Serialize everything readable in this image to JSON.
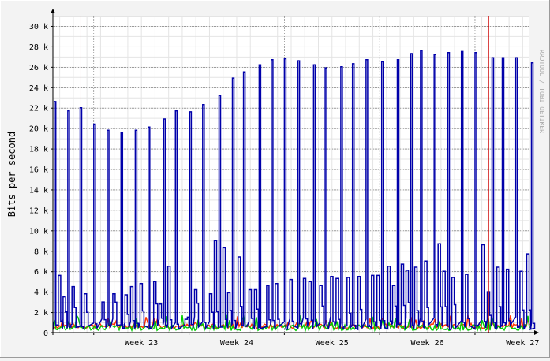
{
  "chart_data": {
    "type": "line",
    "ylabel": "Bits per second",
    "watermark": "RRDTOOL / TOBI OETIKER",
    "ylim": [
      0,
      31000
    ],
    "y_ticks": [
      {
        "value": 0,
        "label": "0"
      },
      {
        "value": 2000,
        "label": "2 k"
      },
      {
        "value": 4000,
        "label": "4 k"
      },
      {
        "value": 6000,
        "label": "6 k"
      },
      {
        "value": 8000,
        "label": "8 k"
      },
      {
        "value": 10000,
        "label": "10 k"
      },
      {
        "value": 12000,
        "label": "12 k"
      },
      {
        "value": 14000,
        "label": "14 k"
      },
      {
        "value": 16000,
        "label": "16 k"
      },
      {
        "value": 18000,
        "label": "18 k"
      },
      {
        "value": 20000,
        "label": "20 k"
      },
      {
        "value": 22000,
        "label": "22 k"
      },
      {
        "value": 24000,
        "label": "24 k"
      },
      {
        "value": 26000,
        "label": "26 k"
      },
      {
        "value": 28000,
        "label": "28 k"
      },
      {
        "value": 30000,
        "label": "30 k"
      }
    ],
    "x_range_days": [
      0,
      35
    ],
    "week_boundaries": [
      3,
      10,
      17,
      24,
      31
    ],
    "x_ticks": [
      {
        "value": 6.5,
        "label": "Week 23"
      },
      {
        "value": 13.5,
        "label": "Week 24"
      },
      {
        "value": 20.5,
        "label": "Week 25"
      },
      {
        "value": 27.5,
        "label": "Week 26"
      },
      {
        "value": 34.5,
        "label": "Week 27"
      }
    ],
    "markers": [
      2,
      32
    ],
    "colors": {
      "background": "#f3f3f3",
      "plot_bg": "#ffffff",
      "minor_grid": "#e4e4e4",
      "major_grid": "#6e6e6e",
      "axis": "#000000",
      "marker": "#cc0000",
      "watermark": "#aaaaaa",
      "border_light": "#ffffff",
      "border_dark": "#9b9b9b"
    },
    "series": [
      {
        "color": "#0000aa",
        "peaks": [
          [
            0.1,
            22600
          ],
          [
            1,
            21700
          ],
          [
            2,
            22000
          ],
          [
            3,
            20400
          ],
          [
            4,
            19800
          ],
          [
            5,
            19600
          ],
          [
            6,
            19800
          ],
          [
            7,
            20100
          ],
          [
            8,
            20900
          ],
          [
            9,
            21700
          ],
          [
            10,
            21600
          ],
          [
            11,
            22300
          ],
          [
            12,
            23200
          ],
          [
            13,
            24900
          ],
          [
            14,
            25500
          ],
          [
            15,
            26200
          ],
          [
            16,
            26700
          ],
          [
            17,
            26800
          ],
          [
            18,
            26600
          ],
          [
            19,
            26200
          ],
          [
            20,
            25900
          ],
          [
            21,
            26000
          ],
          [
            22,
            26300
          ],
          [
            23,
            26700
          ],
          [
            24,
            26500
          ],
          [
            25,
            26700
          ],
          [
            26,
            27300
          ],
          [
            27,
            27600
          ],
          [
            28,
            27200
          ],
          [
            29,
            27400
          ],
          [
            30,
            27500
          ],
          [
            31,
            27400
          ],
          [
            32,
            26900
          ],
          [
            33,
            26900
          ],
          [
            34,
            26900
          ],
          [
            35,
            26400
          ]
        ],
        "bursts": [
          [
            0.4,
            5600
          ],
          [
            0.7,
            3500
          ],
          [
            1.4,
            4500
          ],
          [
            2.3,
            3800
          ],
          [
            3.6,
            3000
          ],
          [
            4.4,
            3800
          ],
          [
            5.2,
            3700
          ],
          [
            5.7,
            4500
          ],
          [
            6.4,
            4800
          ],
          [
            7.4,
            5000
          ],
          [
            7.8,
            2800
          ],
          [
            8.4,
            6500
          ],
          [
            9.7,
            1300
          ],
          [
            10.4,
            4200
          ],
          [
            11.5,
            3800
          ],
          [
            11.8,
            9000
          ],
          [
            12.1,
            8300
          ],
          [
            12.7,
            3900
          ],
          [
            13.6,
            7400
          ],
          [
            14.4,
            4200
          ],
          [
            14.8,
            4200
          ],
          [
            15.7,
            4600
          ],
          [
            16.3,
            4800
          ],
          [
            17.4,
            5200
          ],
          [
            18.4,
            5300
          ],
          [
            18.8,
            5000
          ],
          [
            19.6,
            4600
          ],
          [
            20.4,
            5500
          ],
          [
            20.8,
            5300
          ],
          [
            21.6,
            5400
          ],
          [
            22.4,
            5500
          ],
          [
            23.4,
            5600
          ],
          [
            23.8,
            5600
          ],
          [
            24.6,
            6500
          ],
          [
            24.9,
            4600
          ],
          [
            25.5,
            6700
          ],
          [
            25.9,
            6100
          ],
          [
            26.5,
            6400
          ],
          [
            27.3,
            7000
          ],
          [
            28.2,
            8700
          ],
          [
            28.6,
            6000
          ],
          [
            29.3,
            5400
          ],
          [
            30.3,
            5700
          ],
          [
            31.5,
            8600
          ],
          [
            31.9,
            4000
          ],
          [
            32.6,
            6400
          ],
          [
            33.3,
            6200
          ],
          [
            34.3,
            6000
          ],
          [
            34.8,
            7700
          ]
        ]
      },
      {
        "color": "#ff3300",
        "base": 400,
        "amp": 600
      },
      {
        "color": "#00cc00",
        "base": 200,
        "amp": 700
      }
    ]
  }
}
